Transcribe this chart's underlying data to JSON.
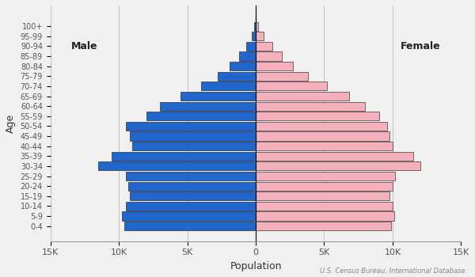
{
  "age_groups": [
    "0-4",
    "5-9",
    "10-14",
    "15-19",
    "20-24",
    "25-29",
    "30-34",
    "35-39",
    "40-44",
    "45-49",
    "50-54",
    "55-59",
    "60-64",
    "65-69",
    "70-74",
    "75-79",
    "80-84",
    "85-89",
    "90-94",
    "95-99",
    "100+"
  ],
  "male": [
    9600,
    9800,
    9500,
    9200,
    9300,
    9500,
    11500,
    10500,
    9000,
    9200,
    9500,
    8000,
    7000,
    5500,
    4000,
    2800,
    1900,
    1200,
    700,
    300,
    100
  ],
  "female": [
    9900,
    10100,
    10000,
    9800,
    10000,
    10200,
    12000,
    11500,
    10000,
    9800,
    9600,
    9000,
    8000,
    6800,
    5200,
    3800,
    2700,
    1900,
    1200,
    600,
    200
  ],
  "male_color": "#2166cc",
  "female_color": "#f4b0bb",
  "male_edge_color": "#111111",
  "female_edge_color": "#111111",
  "xlabel": "Population",
  "ylabel": "Age",
  "xlim": 15000,
  "xtick_values": [
    -15000,
    -10000,
    -5000,
    0,
    5000,
    10000,
    15000
  ],
  "xtick_labels": [
    "15K",
    "10K",
    "5K",
    "0",
    "5K",
    "10K",
    "15K"
  ],
  "male_label": "Male",
  "female_label": "Female",
  "source_text": "U.S. Census Bureau, International Database",
  "grid_color": "#c8c8c8",
  "bg_color": "#f0f0f0"
}
